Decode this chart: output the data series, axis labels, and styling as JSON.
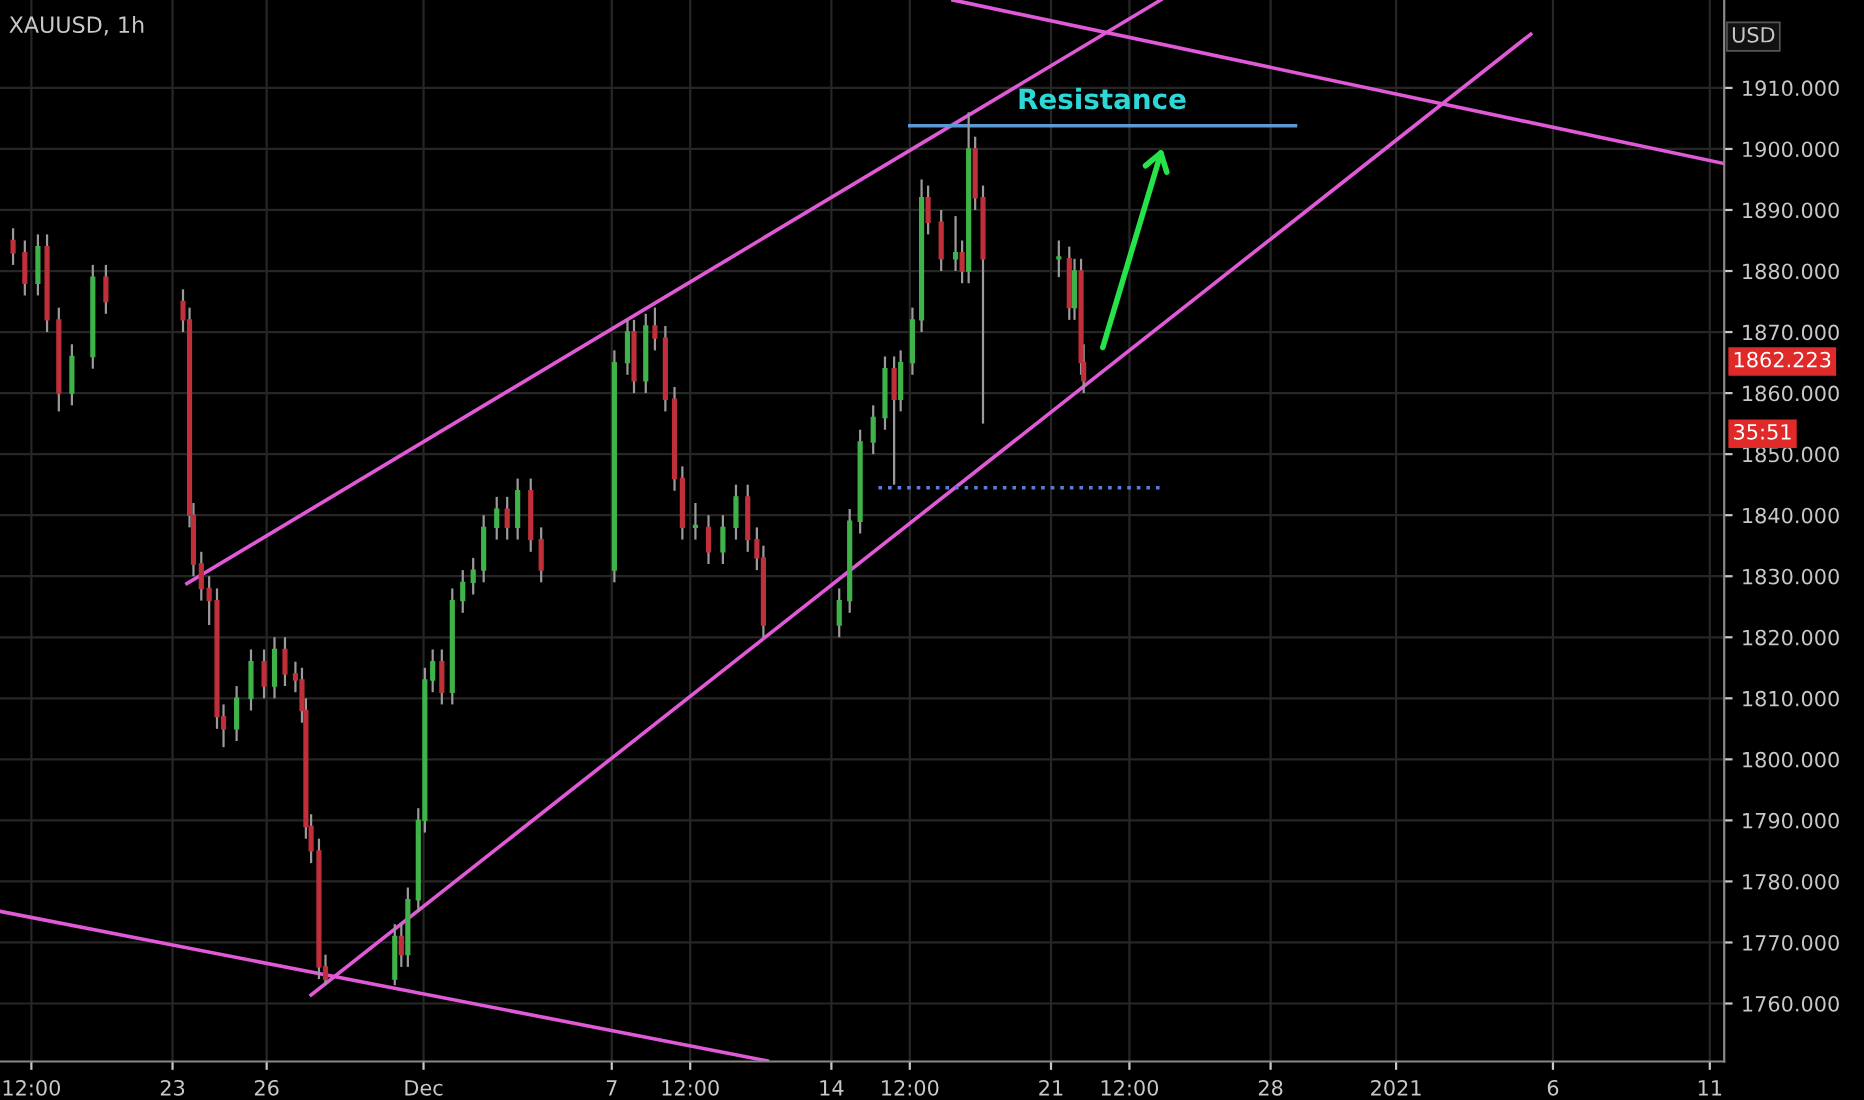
{
  "chart_data": {
    "type": "candlestick",
    "title": "XAUUSD, 1h",
    "ylabel": "USD",
    "x": [
      "2020-11-17T22:00",
      "2020-11-18T07:00",
      "2020-11-18T17:00",
      "2020-11-19T00:00",
      "2020-11-19T09:00",
      "2020-11-19T19:00",
      "2020-11-20T11:00",
      "2020-11-20T21:00",
      "2020-11-23T08:00",
      "2020-11-23T13:00",
      "2020-11-23T16:00",
      "2020-11-23T22:00",
      "2020-11-24T04:00",
      "2020-11-24T10:00",
      "2020-11-24T15:00",
      "2020-11-25T01:00",
      "2020-11-25T12:00",
      "2020-11-25T22:00",
      "2020-11-26T06:00",
      "2020-11-26T14:00",
      "2020-11-26T22:00",
      "2020-11-27T03:00",
      "2020-11-27T06:00",
      "2020-11-27T10:00",
      "2020-11-27T16:00",
      "2020-11-27T21:00",
      "2020-11-30T02:00",
      "2020-11-30T07:00",
      "2020-11-30T12:00",
      "2020-11-30T20:00",
      "2020-12-01T01:00",
      "2020-12-01T07:00",
      "2020-12-01T14:00",
      "2020-12-01T22:00",
      "2020-12-02T06:00",
      "2020-12-02T14:00",
      "2020-12-02T22:00",
      "2020-12-03T08:00",
      "2020-12-03T16:00",
      "2020-12-04T00:00",
      "2020-12-04T10:00",
      "2020-12-04T18:00",
      "2020-12-07T02:00",
      "2020-12-07T12:00",
      "2020-12-07T17:00",
      "2020-12-08T02:00",
      "2020-12-08T09:00",
      "2020-12-08T17:00",
      "2020-12-09T00:00",
      "2020-12-09T06:00",
      "2020-12-09T16:00",
      "2020-12-10T02:00",
      "2020-12-10T13:00",
      "2020-12-10T23:00",
      "2020-12-11T08:00",
      "2020-12-11T15:00",
      "2020-12-11T20:00",
      "2020-12-14T06:00",
      "2020-12-14T14:00",
      "2020-12-14T22:00",
      "2020-12-15T08:00",
      "2020-12-15T17:00",
      "2020-12-16T00:00",
      "2020-12-16T05:00",
      "2020-12-16T14:00",
      "2020-12-16T21:00",
      "2020-12-17T02:00",
      "2020-12-17T12:00",
      "2020-12-17T23:00",
      "2020-12-18T04:00",
      "2020-12-18T09:00",
      "2020-12-18T14:00",
      "2020-12-18T20:00",
      "2020-12-21T06:00",
      "2020-12-21T14:00",
      "2020-12-21T18:00",
      "2020-12-21T23:00",
      "2020-12-22T01:00"
    ],
    "ohlc": [
      [
        1885,
        1887,
        1881,
        1883
      ],
      [
        1883,
        1885,
        1876,
        1878
      ],
      [
        1878,
        1886,
        1876,
        1884
      ],
      [
        1884,
        1886,
        1870,
        1872
      ],
      [
        1872,
        1874,
        1857,
        1860
      ],
      [
        1860,
        1868,
        1858,
        1866
      ],
      [
        1866,
        1881,
        1864,
        1879
      ],
      [
        1879,
        1881,
        1873,
        1875
      ],
      [
        1875,
        1877,
        1870,
        1872
      ],
      [
        1872,
        1874,
        1838,
        1840
      ],
      [
        1840,
        1842,
        1830,
        1832
      ],
      [
        1832,
        1834,
        1826,
        1828
      ],
      [
        1828,
        1830,
        1822,
        1826
      ],
      [
        1826,
        1828,
        1805,
        1807
      ],
      [
        1807,
        1809,
        1802,
        1805
      ],
      [
        1805,
        1812,
        1803,
        1810
      ],
      [
        1810,
        1818,
        1808,
        1816
      ],
      [
        1816,
        1818,
        1810,
        1812
      ],
      [
        1812,
        1820,
        1810,
        1818
      ],
      [
        1818,
        1820,
        1812,
        1814
      ],
      [
        1814,
        1816,
        1811,
        1813
      ],
      [
        1813,
        1815,
        1806,
        1808
      ],
      [
        1808,
        1810,
        1787,
        1789
      ],
      [
        1789,
        1791,
        1783,
        1785
      ],
      [
        1785,
        1787,
        1764,
        1766
      ],
      [
        1766,
        1768,
        1763,
        1764
      ],
      [
        1764,
        1773,
        1763,
        1771
      ],
      [
        1771,
        1773,
        1766,
        1768
      ],
      [
        1768,
        1779,
        1766,
        1777
      ],
      [
        1777,
        1792,
        1775,
        1790
      ],
      [
        1790,
        1815,
        1788,
        1813
      ],
      [
        1813,
        1818,
        1811,
        1816
      ],
      [
        1816,
        1818,
        1809,
        1811
      ],
      [
        1811,
        1828,
        1809,
        1826
      ],
      [
        1826,
        1831,
        1824,
        1829
      ],
      [
        1829,
        1833,
        1827,
        1831
      ],
      [
        1831,
        1840,
        1829,
        1838
      ],
      [
        1838,
        1843,
        1836,
        1841
      ],
      [
        1841,
        1843,
        1836,
        1838
      ],
      [
        1838,
        1846,
        1836,
        1844
      ],
      [
        1844,
        1846,
        1834,
        1836
      ],
      [
        1836,
        1838,
        1829,
        1831
      ],
      [
        1831,
        1867,
        1829,
        1865
      ],
      [
        1865,
        1872,
        1863,
        1870
      ],
      [
        1870,
        1872,
        1860,
        1862
      ],
      [
        1862,
        1873,
        1860,
        1871
      ],
      [
        1871,
        1874,
        1867,
        1869
      ],
      [
        1869,
        1871,
        1857,
        1859
      ],
      [
        1859,
        1861,
        1844,
        1846
      ],
      [
        1846,
        1848,
        1836,
        1838
      ],
      [
        1838,
        1842,
        1836,
        1838
      ],
      [
        1838,
        1840,
        1832,
        1834
      ],
      [
        1834,
        1840,
        1832,
        1838
      ],
      [
        1838,
        1845,
        1836,
        1843
      ],
      [
        1843,
        1845,
        1834,
        1836
      ],
      [
        1836,
        1838,
        1831,
        1833
      ],
      [
        1833,
        1835,
        1820,
        1822
      ],
      [
        1822,
        1828,
        1820,
        1826
      ],
      [
        1826,
        1841,
        1824,
        1839
      ],
      [
        1839,
        1854,
        1837,
        1852
      ],
      [
        1852,
        1858,
        1850,
        1856
      ],
      [
        1856,
        1866,
        1854,
        1864
      ],
      [
        1864,
        1866,
        1845,
        1859
      ],
      [
        1859,
        1867,
        1857,
        1865
      ],
      [
        1865,
        1874,
        1863,
        1872
      ],
      [
        1872,
        1895,
        1870,
        1892
      ],
      [
        1892,
        1894,
        1886,
        1888
      ],
      [
        1888,
        1890,
        1880,
        1882
      ],
      [
        1882,
        1889,
        1880,
        1883
      ],
      [
        1883,
        1885,
        1878,
        1880
      ],
      [
        1880,
        1906,
        1878,
        1900
      ],
      [
        1900,
        1902,
        1890,
        1892
      ],
      [
        1892,
        1894,
        1855,
        1882
      ],
      [
        1882,
        1885,
        1879,
        1882
      ],
      [
        1882,
        1884,
        1872,
        1874
      ],
      [
        1874,
        1882,
        1872,
        1880
      ],
      [
        1880,
        1882,
        1863,
        1865
      ],
      [
        1865,
        1868,
        1860,
        1862
      ]
    ],
    "series": [
      {
        "type": "line",
        "color": "#e05ad8",
        "x": [
          "2020-11-23T11:00",
          "2020-12-24T12:00"
        ],
        "values": [
          1828.8,
          1924.4
        ]
      },
      {
        "type": "line",
        "color": "#e05ad8",
        "x": [
          "2020-11-27T10:00",
          "2021-01-05T07:00"
        ],
        "values": [
          1761.4,
          1918.8
        ]
      },
      {
        "type": "line",
        "color": "#e05ad8",
        "x": [
          "2020-11-17T12:00",
          "2020-12-11T23:00"
        ],
        "values": [
          1775.1,
          1750.6
        ]
      },
      {
        "type": "line",
        "color": "#e05ad8",
        "x": [
          "2020-12-17T21:00",
          "2021-01-11T11:00"
        ],
        "values": [
          1924.4,
          1897.6
        ]
      },
      {
        "type": "line",
        "color": "#5b9bd5",
        "x": [
          "2020-12-16T12:00",
          "2020-12-28T19:00"
        ],
        "values": [
          1903.8,
          1903.8
        ]
      },
      {
        "type": "line",
        "color": "#5b7bd5",
        "line_style": "dotted",
        "x": [
          "2020-12-15T12:00",
          "2020-12-24T14:00"
        ],
        "values": [
          1844.5,
          1844.5
        ]
      }
    ],
    "annotations": [
      {
        "text": "Resistance",
        "x": "2020-12-22T15:00",
        "y": 1903.8
      },
      "1862.223",
      "35:51"
    ],
    "xlim": [
      "2020-11-17T12:00",
      "2021-01-11T11:00"
    ],
    "ylim": [
      1750.5,
      1924.4
    ],
    "xticks": [
      {
        "value": "2020-11-18T12:00",
        "label": "12:00"
      },
      {
        "value": "2020-11-23",
        "label": "23"
      },
      {
        "value": "2020-11-26",
        "label": "26"
      },
      {
        "value": "2020-12-01",
        "label": "Dec"
      },
      {
        "value": "2020-12-07",
        "label": "7"
      },
      {
        "value": "2020-12-09T12:00",
        "label": "12:00"
      },
      {
        "value": "2020-12-14",
        "label": "14"
      },
      {
        "value": "2020-12-16T12:00",
        "label": "12:00"
      },
      {
        "value": "2020-12-21",
        "label": "21"
      },
      {
        "value": "2020-12-23T12:00",
        "label": "12:00"
      },
      {
        "value": "2020-12-28",
        "label": "28"
      },
      {
        "value": "2021-01-01",
        "label": "2021"
      },
      {
        "value": "2021-01-06",
        "label": "6"
      },
      {
        "value": "2021-01-11",
        "label": "11"
      }
    ],
    "yticks": [
      {
        "value": 1760,
        "label": "1760.000"
      },
      {
        "value": 1770,
        "label": "1770.000"
      },
      {
        "value": 1780,
        "label": "1780.000"
      },
      {
        "value": 1790,
        "label": "1790.000"
      },
      {
        "value": 1800,
        "label": "1800.000"
      },
      {
        "value": 1810,
        "label": "1810.000"
      },
      {
        "value": 1820,
        "label": "1820.000"
      },
      {
        "value": 1830,
        "label": "1830.000"
      },
      {
        "value": 1840,
        "label": "1840.000"
      },
      {
        "value": 1850,
        "label": "1850.000"
      },
      {
        "value": 1860,
        "label": "1860.000"
      },
      {
        "value": 1870,
        "label": "1870.000"
      },
      {
        "value": 1880,
        "label": "1880.000"
      },
      {
        "value": 1890,
        "label": "1890.000"
      },
      {
        "value": 1900,
        "label": "1900.000"
      },
      {
        "value": 1910,
        "label": "1910.000"
      }
    ],
    "grid": true
  }
}
